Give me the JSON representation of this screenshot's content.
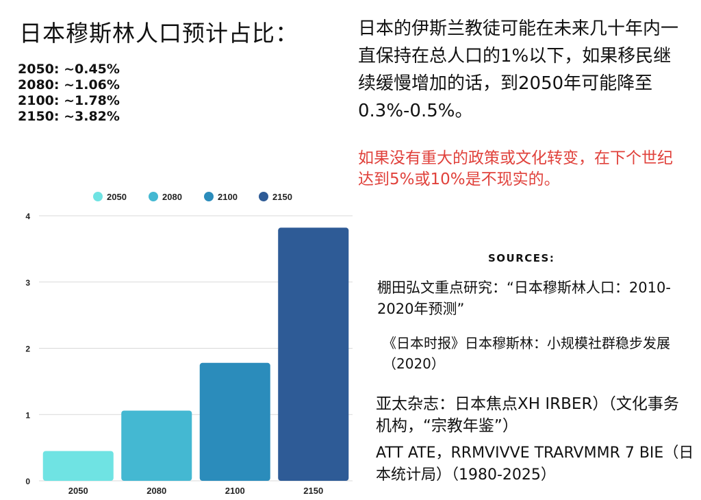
{
  "header": {
    "title": "日本穆斯林人口预计占比：",
    "stats": [
      "2050: ~0.45%",
      "2080: ~1.06%",
      "2100: ~1.78%",
      "2150: ~3.82%"
    ]
  },
  "summary_text": "日本的伊斯兰教徒可能在未来几十年内一直保持在总人口的1%以下，如果移民继续缓慢增加的话，到2050年可能降至0.3%-0.5%。",
  "warning_text": "如果没有重大的政策或文化转变，在下个世纪达到5%或10%是不现实的。",
  "sources": {
    "heading": "SOURCES:",
    "items": [
      "棚田弘文重点研究：“日本穆斯林人口：2010-2020年预测”",
      "《日本时报》日本穆斯林：小规模社群稳步发展（2020）",
      "亚太杂志：日本焦点XH IRBER）（文化事务机构，“宗教年鉴”）",
      "ATT ATE，RRMVIVVE TRARVMMR 7 BIE（日本统计局）（1980-2025）"
    ]
  },
  "chart_data": {
    "type": "bar",
    "categories": [
      "2050",
      "2080",
      "2100",
      "2150"
    ],
    "values": [
      0.45,
      1.06,
      1.78,
      3.82
    ],
    "colors": [
      "#6fe3e3",
      "#44b8d2",
      "#2b8cbb",
      "#2e5b96"
    ],
    "legend": [
      "2050",
      "2080",
      "2100",
      "2150"
    ],
    "legend_position": "top",
    "ylim": [
      0,
      4
    ],
    "yticks": [
      "0",
      "1",
      "2",
      "3",
      "4"
    ],
    "grid": true,
    "title": "",
    "xlabel": "",
    "ylabel": ""
  }
}
